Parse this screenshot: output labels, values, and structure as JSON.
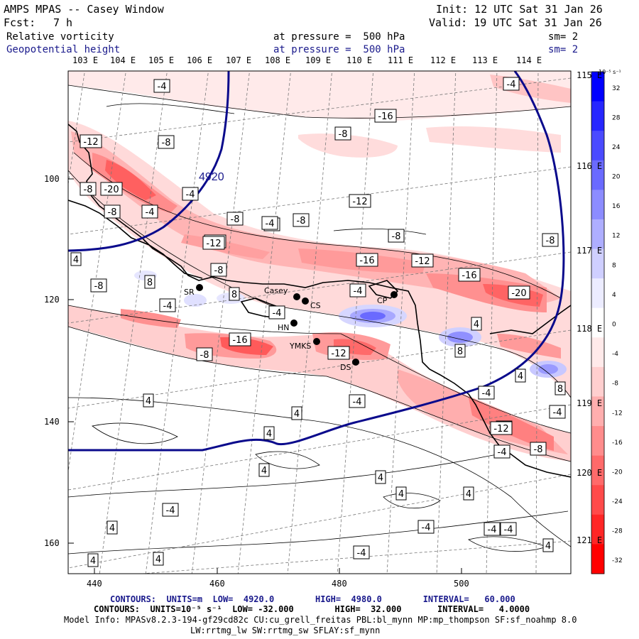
{
  "header": {
    "title": "AMPS MPAS -- Casey Window",
    "init": "Init: 12 UTC Sat 31 Jan 26",
    "fcst_label": "Fcst:",
    "fcst_value": "7 h",
    "valid": "Valid: 19 UTC Sat 31 Jan 26",
    "field1": "Relative vorticity",
    "field1_level": "at pressure =  500 hPa",
    "field1_sm": "sm= 2",
    "field2": "Geopotential height",
    "field2_level": "at pressure =  500 hPa",
    "field2_sm": "sm= 2"
  },
  "axes": {
    "top_lon": [
      "103 E",
      "104 E",
      "105 E",
      "106 E",
      "107 E",
      "108 E",
      "109 E",
      "110 E",
      "111 E",
      "112 E",
      "113 E",
      "114 E"
    ],
    "right_lon": [
      "115 E",
      "116 E",
      "117 E",
      "118 E",
      "119 E",
      "120 E",
      "121 E"
    ],
    "left_y": [
      "100",
      "120",
      "140",
      "160"
    ],
    "bottom_x": [
      "440",
      "460",
      "480",
      "500"
    ]
  },
  "colorbar": {
    "unit": "10⁻⁵ s⁻¹",
    "labels": [
      "32",
      "28",
      "24",
      "20",
      "16",
      "12",
      "8",
      "4",
      "0",
      "-4",
      "-8",
      "-12",
      "-16",
      "-20",
      "-24",
      "-28",
      "-32"
    ],
    "colors": [
      "#0000ff",
      "#2626ff",
      "#4a4aff",
      "#6a6aff",
      "#8c8cff",
      "#aeaeff",
      "#cfcfff",
      "#ececff",
      "#ffffff",
      "#ffeaea",
      "#ffcfcf",
      "#ffaeae",
      "#ff8c8c",
      "#ff6a6a",
      "#ff4a4a",
      "#ff2626",
      "#ff0000"
    ]
  },
  "map": {
    "stations": [
      "SR",
      "Casey",
      "CS",
      "CP",
      "HN",
      "YMKS",
      "DS"
    ],
    "height_label": "4920",
    "vort_labels": [
      "-4",
      "-4",
      "-8",
      "-12",
      "-8",
      "-20",
      "-8",
      "-12",
      "-16",
      "-4",
      "-8",
      "-8",
      "-4",
      "-8",
      "-12",
      "-4",
      "-4",
      "-12",
      "-8",
      "-8",
      "-16",
      "-12",
      "-16",
      "-20",
      "4",
      "-8",
      "8",
      "8",
      "-4",
      "-4",
      "-4",
      "-8",
      "-16",
      "-8",
      "-12",
      "4",
      "8",
      "4",
      "-4",
      "4",
      "8",
      "-4",
      "4",
      "4",
      "-4",
      "-8",
      "-4",
      "-12",
      "4",
      "4",
      "-8",
      "4",
      "-4",
      "4",
      "4",
      "-4",
      "4",
      "-4",
      "4",
      "4",
      "-4",
      "-4"
    ]
  },
  "footer": {
    "contours1": "CONTOURS:  UNITS=m  LOW=  4920.0        HIGH=  4980.0        INTERVAL=   60.000",
    "contours2": "CONTOURS:  UNITS=10⁻⁵ s⁻¹  LOW= -32.000        HIGH=  32.000       INTERVAL=   4.0000",
    "model_info": "Model Info: MPASv8.2.3-194-gf29cd82c CU:cu_grell_freitas PBL:bl_mynn MP:mp_thompson SF:sf_noahmp 8.0",
    "model_info2": "LW:rrtmg_lw SW:rrtmg_sw SFLAY:sf_mynn"
  },
  "colors": {
    "height_contour": "#0a0a8c",
    "coast": "#000000",
    "grid": "#606060"
  }
}
